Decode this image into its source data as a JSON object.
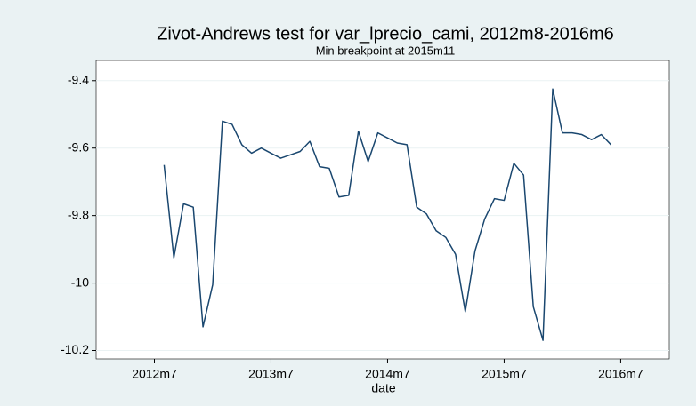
{
  "chart_data": {
    "type": "line",
    "title": "Zivot-Andrews test for var_lprecio_cami, 2012m8-2016m6",
    "subtitle": "Min breakpoint at 2015m11",
    "x_label": "date",
    "x": [
      "2012m8",
      "2012m9",
      "2012m10",
      "2012m11",
      "2012m12",
      "2013m1",
      "2013m2",
      "2013m3",
      "2013m4",
      "2013m5",
      "2013m6",
      "2013m7",
      "2013m8",
      "2013m9",
      "2013m10",
      "2013m11",
      "2013m12",
      "2014m1",
      "2014m2",
      "2014m3",
      "2014m4",
      "2014m5",
      "2014m6",
      "2014m7",
      "2014m8",
      "2014m9",
      "2014m10",
      "2014m11",
      "2014m12",
      "2015m1",
      "2015m2",
      "2015m3",
      "2015m4",
      "2015m5",
      "2015m6",
      "2015m7",
      "2015m8",
      "2015m9",
      "2015m10",
      "2015m11",
      "2015m12",
      "2016m1",
      "2016m2",
      "2016m3",
      "2016m4",
      "2016m5",
      "2016m6"
    ],
    "values": [
      -9.65,
      -9.925,
      -9.765,
      -9.775,
      -10.13,
      -10.005,
      -9.52,
      -9.53,
      -9.59,
      -9.615,
      -9.6,
      -9.615,
      -9.63,
      -9.62,
      -9.61,
      -9.58,
      -9.655,
      -9.66,
      -9.745,
      -9.74,
      -9.55,
      -9.64,
      -9.555,
      -9.57,
      -9.585,
      -9.59,
      -9.775,
      -9.795,
      -9.845,
      -9.865,
      -9.915,
      -10.085,
      -9.905,
      -9.81,
      -9.75,
      -9.755,
      -9.645,
      -9.68,
      -10.07,
      -10.17,
      -9.425,
      -9.555,
      -9.555,
      -9.56,
      -9.575,
      -9.56,
      -9.59
    ],
    "color": "#1a476f",
    "xlim": [
      "2012m1",
      "2016m12"
    ],
    "xticks": [
      "2012m7",
      "2013m7",
      "2014m7",
      "2015m7",
      "2016m7"
    ],
    "ylim": [
      -10.225,
      -9.34
    ],
    "yticks": [
      -10.2,
      -10,
      -9.8,
      -9.6,
      -9.4
    ],
    "grid": true
  }
}
